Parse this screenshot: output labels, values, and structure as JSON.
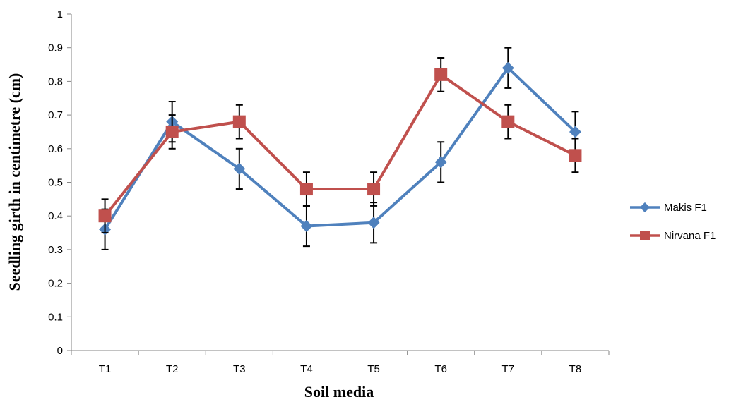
{
  "chart_data": {
    "type": "line",
    "title": "",
    "xlabel": "Soil media",
    "ylabel": "Seedling girth in centimetre (cm)",
    "categories": [
      "T1",
      "T2",
      "T3",
      "T4",
      "T5",
      "T6",
      "T7",
      "T8"
    ],
    "ylim": [
      0,
      1
    ],
    "y_ticks": [
      "0",
      "0.1",
      "0.2",
      "0.3",
      "0.4",
      "0.5",
      "0.6",
      "0.7",
      "0.8",
      "0.9",
      "1"
    ],
    "grid": false,
    "legend_position": "right",
    "series": [
      {
        "name": "Makis F1",
        "color": "#4F81BD",
        "marker": "diamond",
        "values": [
          0.36,
          0.68,
          0.54,
          0.37,
          0.38,
          0.56,
          0.84,
          0.65
        ],
        "errors": [
          0.06,
          0.06,
          0.06,
          0.06,
          0.06,
          0.06,
          0.06,
          0.06
        ]
      },
      {
        "name": "Nirvana F1",
        "color": "#C0504D",
        "marker": "square",
        "values": [
          0.4,
          0.65,
          0.68,
          0.48,
          0.48,
          0.82,
          0.68,
          0.58
        ],
        "errors": [
          0.05,
          0.05,
          0.05,
          0.05,
          0.05,
          0.05,
          0.05,
          0.05
        ]
      }
    ]
  }
}
